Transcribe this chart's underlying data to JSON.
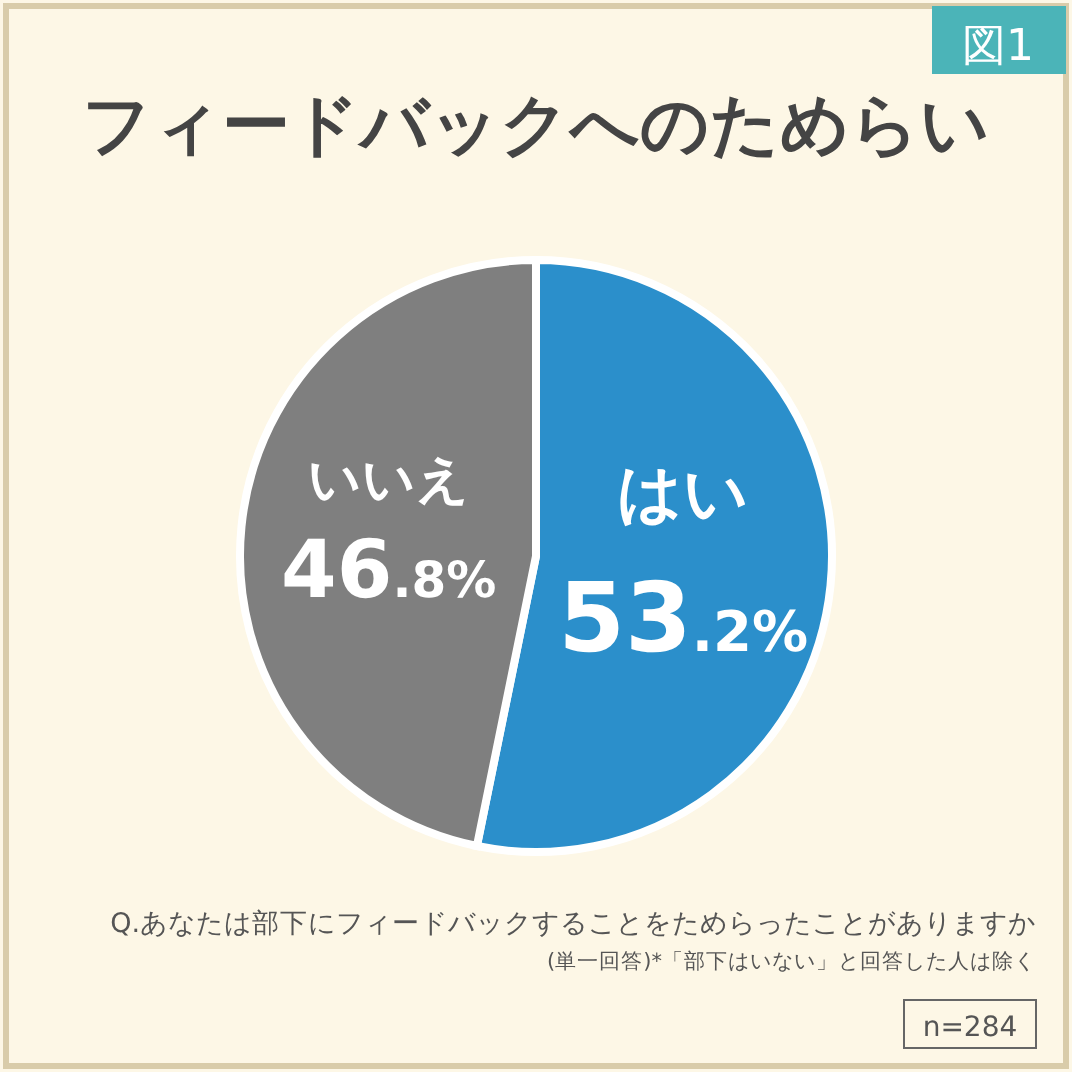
{
  "chart_data": {
    "type": "pie",
    "title": "フィードバックへのためらい",
    "categories": [
      "はい",
      "いいえ"
    ],
    "values": [
      53.2,
      46.8
    ],
    "colors": [
      "#2b8fcb",
      "#7f7f7f"
    ],
    "value_labels": [
      "53.2%",
      "46.8%"
    ],
    "annotations": [
      "図1",
      "Q.あなたは部下にフィードバックすることをためらったことがありますか",
      "(単一回答)*「部下はいない」と回答した人は除く",
      "n=284"
    ]
  }
}
